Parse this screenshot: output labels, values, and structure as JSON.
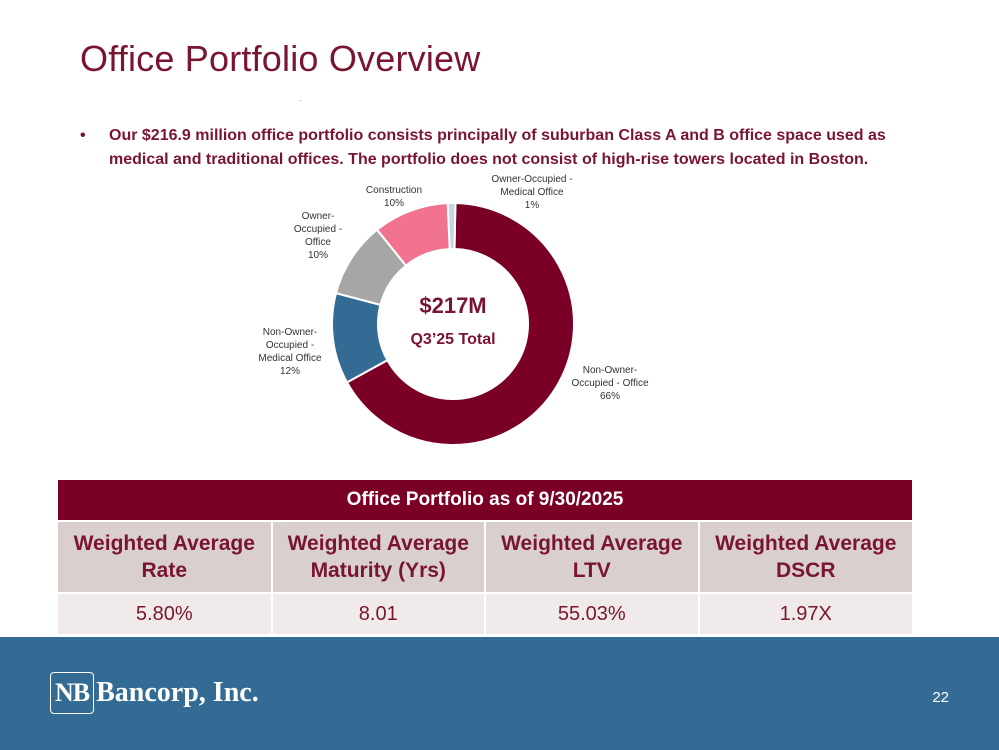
{
  "slide": {
    "title": "Office Portfolio Overview",
    "bullet_mark": "•",
    "bullet": "Our $216.9 million office portfolio consists principally of suburban Class A and B office space used as medical and traditional offices. The portfolio does not consist of high-rise towers located in Boston.",
    "page_number": "22"
  },
  "chart_data": {
    "type": "pie",
    "style": "donut",
    "center_label": "$217M",
    "center_sublabel": "Q3’25 Total",
    "slices": [
      {
        "name": "Non-Owner-Occupied - Office",
        "value": 66,
        "color": "#7a0026",
        "label_lines": [
          "Non-Owner-",
          "Occupied - Office",
          "66%"
        ]
      },
      {
        "name": "Non-Owner-Occupied - Medical Office",
        "value": 12,
        "color": "#336b94",
        "label_lines": [
          "Non-Owner-",
          "Occupied -",
          "Medical Office",
          "12%"
        ]
      },
      {
        "name": "Owner-Occupied - Office",
        "value": 10,
        "color": "#a6a6a6",
        "label_lines": [
          "Owner-",
          "Occupied -",
          "Office",
          "10%"
        ]
      },
      {
        "name": "Construction",
        "value": 10,
        "color": "#f2738f",
        "label_lines": [
          "Construction",
          "10%"
        ]
      },
      {
        "name": "Owner-Occupied - Medical Office",
        "value": 1,
        "color": "#c5d5e4",
        "label_lines": [
          "Owner-Occupied -",
          "Medical Office",
          "1%"
        ]
      }
    ]
  },
  "table": {
    "title": "Office Portfolio as of 9/30/2025",
    "headers": [
      [
        "Weighted Average",
        "Rate"
      ],
      [
        "Weighted Average",
        "Maturity (Yrs)"
      ],
      [
        "Weighted Average",
        "LTV"
      ],
      [
        "Weighted Average",
        "DSCR"
      ]
    ],
    "values": [
      "5.80%",
      "8.01",
      "55.03%",
      "1.97X"
    ]
  },
  "footer": {
    "logo_mark": "NB",
    "logo_text": "Bancorp, Inc."
  }
}
